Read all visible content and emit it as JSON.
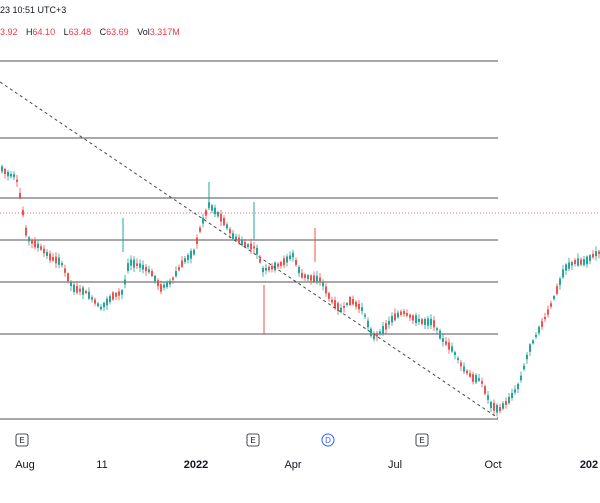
{
  "header": {
    "datetime_fragment": "23 10:51 UTC+3",
    "ohlc": [
      {
        "prefix": "",
        "value": "3.92"
      },
      {
        "prefix": "H",
        "value": "64.10"
      },
      {
        "prefix": "L",
        "value": "63.48"
      },
      {
        "prefix": "C",
        "value": "63.69"
      },
      {
        "prefix": "Vol",
        "value": "3.317M"
      }
    ]
  },
  "x_axis": {
    "labels": [
      {
        "text": "Aug",
        "bold": false
      },
      {
        "text": "11",
        "bold": false
      },
      {
        "text": "2022",
        "bold": true
      },
      {
        "text": "Apr",
        "bold": false
      },
      {
        "text": "Jul",
        "bold": false
      },
      {
        "text": "Oct",
        "bold": false
      },
      {
        "text": "202",
        "bold": true
      }
    ],
    "event_markers": [
      {
        "text": "E",
        "kind": "earnings"
      },
      {
        "text": "E",
        "kind": "earnings"
      },
      {
        "text": "D",
        "kind": "dividend"
      },
      {
        "text": "E",
        "kind": "earnings"
      }
    ]
  },
  "colors": {
    "up": "#26a69a",
    "down": "#ef5350",
    "level_line": "#131722",
    "trend_line": "#4a4a4a",
    "price_line": "#f23645",
    "dividend": "#2962ff"
  },
  "chart_data": {
    "type": "candlestick",
    "fib_levels_count": 7,
    "trend_line": "dashed, descending from top-left to the October low",
    "candles_drawn": "procedurally approximated price path"
  }
}
